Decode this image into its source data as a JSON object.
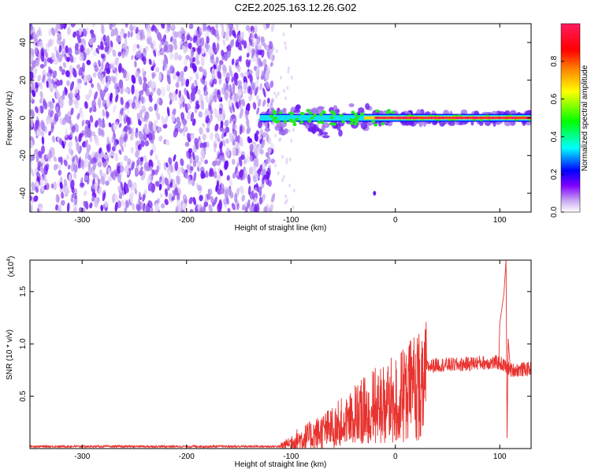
{
  "title": "C2E2.2025.163.12.26.G02",
  "chart_data": [
    {
      "type": "heatmap",
      "xlabel": "Height of straight line (km)",
      "ylabel": "Frequency (Hz)",
      "xlim": [
        -350,
        130
      ],
      "ylim": [
        -50,
        50
      ],
      "xticks": [
        -300,
        -200,
        -100,
        0,
        100
      ],
      "xtick_labels": [
        "-300",
        "-200",
        "-100",
        "0",
        "100"
      ],
      "yticks": [
        -40,
        -20,
        0,
        20,
        40
      ],
      "ytick_labels": [
        "-40",
        "-20",
        "0",
        "20",
        "40"
      ],
      "noise_region_x": [
        -350,
        -117
      ],
      "signal_band": {
        "x_start": -130,
        "x_end": 130,
        "center_hz": 0
      },
      "isolated_blob": {
        "x": -20,
        "y": -40
      },
      "colorbar": {
        "label": "Normalized spectral amplitude",
        "range": [
          0.0,
          1.0
        ],
        "ticks": [
          0.0,
          0.2,
          0.4,
          0.6,
          0.8
        ],
        "tick_labels": [
          "0.0",
          "0.2",
          "0.4",
          "0.6",
          "0.8"
        ],
        "colors": [
          "#ffffff",
          "#c8a8f0",
          "#8000ff",
          "#0000ff",
          "#00ffff",
          "#00ff00",
          "#ffff00",
          "#ff8000",
          "#ff0000",
          "#ff1a60"
        ]
      }
    },
    {
      "type": "line",
      "xlabel": "Height of straight line (km)",
      "ylabel": "SNR (10 * v/v)",
      "multiplier": "(x10",
      "multiplier_exp": "4",
      "multiplier_close": ")",
      "xlim": [
        -350,
        130
      ],
      "ylim": [
        0,
        1.8
      ],
      "xticks": [
        -300,
        -200,
        -100,
        0,
        100
      ],
      "xtick_labels": [
        "-300",
        "-200",
        "-100",
        "0",
        "100"
      ],
      "yticks": [
        0.5,
        1.0,
        1.5
      ],
      "ytick_labels": [
        "0.5",
        "1.0",
        "1.5"
      ],
      "color": "#e8322e",
      "profile": [
        {
          "x": -350,
          "y": 0.02
        },
        {
          "x": -110,
          "y": 0.02
        },
        {
          "x": -100,
          "y": 0.06
        },
        {
          "x": -80,
          "y": 0.12
        },
        {
          "x": -60,
          "y": 0.2
        },
        {
          "x": -45,
          "y": 0.3
        },
        {
          "x": -30,
          "y": 0.4
        },
        {
          "x": -15,
          "y": 0.48
        },
        {
          "x": 0,
          "y": 0.52
        },
        {
          "x": 10,
          "y": 0.6
        },
        {
          "x": 20,
          "y": 0.7
        },
        {
          "x": 30,
          "y": 0.78
        },
        {
          "x": 40,
          "y": 0.8
        },
        {
          "x": 60,
          "y": 0.8
        },
        {
          "x": 80,
          "y": 0.82
        },
        {
          "x": 100,
          "y": 0.82
        },
        {
          "x": 110,
          "y": 0.75
        },
        {
          "x": 130,
          "y": 0.76
        }
      ],
      "peaks": [
        {
          "x": 100,
          "y": 1.2
        },
        {
          "x": 104,
          "y": 1.48
        },
        {
          "x": 106,
          "y": 1.8
        },
        {
          "x": 107,
          "y": 0.1
        },
        {
          "x": 108,
          "y": 1.05
        }
      ]
    }
  ]
}
